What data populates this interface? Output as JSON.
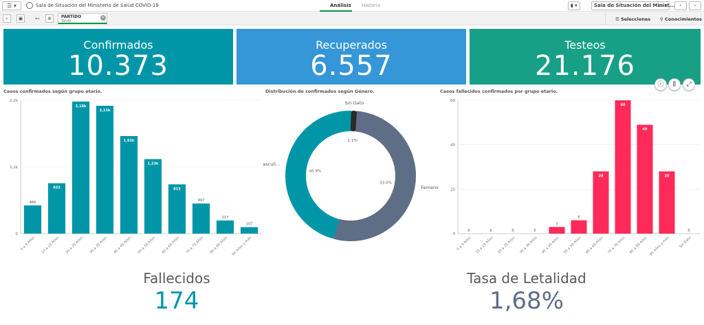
{
  "topbar": {
    "menu": "☰ ▾",
    "app_title": "Sala de Situación del Ministerio de Salud COVID-19",
    "tabs": [
      {
        "label": "Análisis"
      },
      {
        "label": "Historia"
      }
    ],
    "bookmark": "▮ ▾",
    "sheet_title": "Sala de Situación del Minist...",
    "screen": "▭ ▾",
    "prev": "‹",
    "next": "›"
  },
  "toolbar": {
    "filter": {
      "title": "PARTIDO",
      "value": "Tandil"
    },
    "selecciones": "Selecciones",
    "conocimientos": "Conocimientos"
  },
  "kpis": [
    {
      "label": "Confirmados",
      "value": "10.373",
      "color": "#0096a8"
    },
    {
      "label": "Recuperados",
      "value": "6.557",
      "color": "#3596d8"
    },
    {
      "label": "Testeos",
      "value": "21.176",
      "color": "#17a085"
    }
  ],
  "chart_data": [
    {
      "type": "bar",
      "title": "Casos confirmados según grupo etario.",
      "categories": [
        "0 a 9 Años",
        "10 a 19 Años",
        "20 a 29 Años",
        "30 a 39 Años",
        "40 a 49 Años",
        "50 a 59 Años",
        "60 a 69 Años",
        "70 a 79 Años",
        "80 a 89 Años",
        "90 Años y más"
      ],
      "values": [
        466,
        832,
        2180,
        2110,
        1610,
        1230,
        813,
        497,
        217,
        107
      ],
      "value_labels": [
        "466",
        "832",
        "2,18k",
        "2,11k",
        "1,61k",
        "1,23k",
        "813",
        "497",
        "217",
        "107"
      ],
      "yticks": [
        "0",
        "1,1k",
        "2,2k"
      ],
      "ylim": [
        0,
        2200
      ],
      "color": "#0096a8"
    },
    {
      "type": "pie",
      "title": "Distribución de confirmados según Género.",
      "slices": [
        {
          "name": "Femenino",
          "value": 53.0,
          "label": "53.0%",
          "color": "#5f6e87"
        },
        {
          "name": "Masculi...",
          "value": 45.9,
          "label": "45.9%",
          "color": "#0096a8"
        },
        {
          "name": "Sin Dato",
          "value": 1.1,
          "label": "1.1%",
          "color": "#2a2a2a"
        }
      ]
    },
    {
      "type": "bar",
      "title": "Casos fallecidos confirmados por grupo etario.",
      "categories": [
        "0 a 9 Años",
        "10 a 19 Años",
        "20 a 29 Años",
        "30 a 39 Años",
        "40 a 49 Años",
        "50 a 59 Años",
        "60 a 69 Años",
        "70 a 79 Años",
        "80 a 89 Años",
        "90 Años y más",
        "Sin Dato"
      ],
      "values": [
        0,
        0,
        0,
        0,
        3,
        6,
        28,
        60,
        49,
        28,
        0
      ],
      "yticks": [
        "0",
        "20",
        "40",
        "60"
      ],
      "ylim": [
        0,
        60
      ],
      "color": "#ff2a5a"
    }
  ],
  "bottom": {
    "fallecidos_label": "Fallecidos",
    "fallecidos_value": "174",
    "fallecidos_color": "#0096a8",
    "letalidad_label": "Tasa de Letalidad",
    "letalidad_value": "1,68%",
    "letalidad_color": "#5f6e87"
  }
}
